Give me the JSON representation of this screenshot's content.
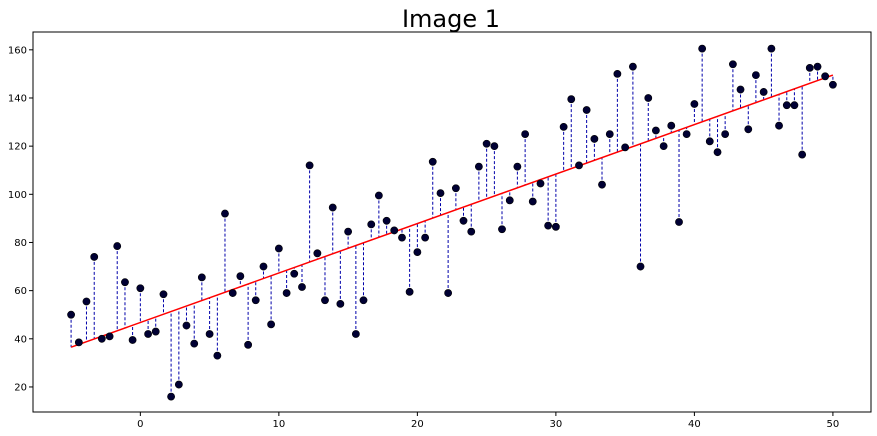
{
  "chart_data": {
    "type": "scatter",
    "title": "Image 1",
    "xlabel": "",
    "ylabel": "",
    "xlim": [
      -7.75,
      52.75
    ],
    "ylim": [
      9.6,
      167.4
    ],
    "xticks": [
      0,
      10,
      20,
      30,
      40,
      50
    ],
    "yticks": [
      20,
      40,
      60,
      80,
      100,
      120,
      140,
      160
    ],
    "grid": false,
    "legend": "none",
    "series": [
      {
        "kind": "points",
        "color": "#000033",
        "x": [
          -5.0,
          -4.44,
          -3.89,
          -3.33,
          -2.78,
          -2.22,
          -1.67,
          -1.11,
          -0.56,
          0.0,
          0.56,
          1.11,
          1.67,
          2.22,
          2.78,
          3.33,
          3.89,
          4.44,
          5.0,
          5.56,
          6.11,
          6.67,
          7.22,
          7.78,
          8.33,
          8.89,
          9.44,
          10.0,
          10.56,
          11.11,
          11.67,
          12.22,
          12.78,
          13.33,
          13.89,
          14.44,
          15.0,
          15.56,
          16.11,
          16.67,
          17.22,
          17.78,
          18.33,
          18.89,
          19.44,
          20.0,
          20.56,
          21.11,
          21.67,
          22.22,
          22.78,
          23.33,
          23.89,
          24.44,
          25.0,
          25.56,
          26.11,
          26.67,
          27.22,
          27.78,
          28.33,
          28.89,
          29.44,
          30.0,
          30.56,
          31.11,
          31.67,
          32.22,
          32.78,
          33.33,
          33.89,
          34.44,
          35.0,
          35.56,
          36.11,
          36.67,
          37.22,
          37.78,
          38.33,
          38.89,
          39.44,
          40.0,
          40.56,
          41.11,
          41.67,
          42.22,
          42.78,
          43.33,
          43.89,
          44.44,
          45.0,
          45.56,
          46.11,
          46.67,
          47.22,
          47.78,
          48.33,
          48.89,
          49.44,
          50.0
        ],
        "y": [
          50.0,
          38.5,
          55.5,
          74.0,
          40.0,
          41.0,
          78.5,
          63.5,
          39.5,
          61.0,
          42.0,
          43.0,
          58.5,
          16.0,
          21.0,
          45.5,
          38.0,
          65.5,
          42.0,
          33.0,
          92.0,
          59.0,
          66.0,
          37.5,
          56.0,
          70.0,
          46.0,
          77.5,
          59.0,
          67.0,
          61.5,
          112.0,
          75.5,
          56.0,
          94.5,
          54.5,
          84.5,
          42.0,
          56.0,
          87.5,
          99.5,
          89.0,
          85.0,
          82.0,
          59.5,
          76.0,
          82.0,
          113.5,
          100.5,
          59.0,
          102.5,
          89.0,
          84.5,
          111.5,
          121.0,
          120.0,
          85.5,
          97.5,
          111.5,
          125.0,
          97.0,
          104.5,
          87.0,
          86.5,
          128.0,
          139.5,
          112.0,
          135.0,
          123.0,
          104.0,
          125.0,
          150.0,
          119.5,
          153.0,
          70.0,
          140.0,
          126.5,
          120.0,
          128.5,
          88.5,
          125.0,
          137.5,
          160.5,
          122.0,
          117.5,
          125.0,
          154.0,
          143.5,
          127.0,
          149.5,
          142.5,
          160.5,
          128.5,
          137.0,
          137.0,
          116.5,
          152.5,
          153.0,
          149.0,
          145.5
        ]
      },
      {
        "kind": "fit-line",
        "color": "#ff0000",
        "x": [
          -5.0,
          50.0
        ],
        "y": [
          36.5,
          149.5
        ]
      }
    ],
    "residual_color": "#0000aa"
  }
}
